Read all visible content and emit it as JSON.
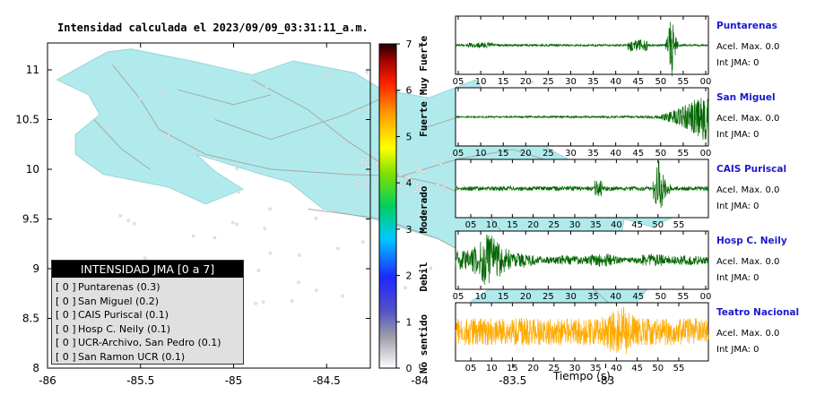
{
  "map": {
    "title": "Intensidad calculada el 2023/09/09_03:31:11_a.m.",
    "lon_ticks": [
      "-86",
      "-85.5",
      "-85",
      "-84.5",
      "-84",
      "-83.5",
      "-83"
    ],
    "lat_ticks": [
      "11",
      "10.5",
      "10",
      "9.5",
      "9",
      "8.5",
      "8"
    ],
    "land_color": "#b0eaec",
    "road_color": "#a8a8a8"
  },
  "colorbar": {
    "ticks": [
      "0",
      "1",
      "2",
      "3",
      "4",
      "5",
      "6",
      "7"
    ],
    "labels": [
      "No sentido",
      "Debil",
      "Moderado",
      "Fuerte",
      "Muy Fuerte"
    ]
  },
  "legend": {
    "title": "INTENSIDAD JMA [0 a 7]",
    "rows": [
      {
        "code": "[ 0 ]",
        "name": "Puntarenas (0.3)"
      },
      {
        "code": "[ 0 ]",
        "name": "San Miguel (0.2)"
      },
      {
        "code": "[ 0 ]",
        "name": "CAIS Puriscal (0.1)"
      },
      {
        "code": "[ 0 ]",
        "name": "Hosp C. Neily (0.1)"
      },
      {
        "code": "[ 0 ]",
        "name": "UCR-Archivo, San Pedro (0.1)"
      },
      {
        "code": "[ 0 ]",
        "name": "San Ramon UCR (0.1)"
      }
    ]
  },
  "stations": [
    {
      "name": "Puntarenas",
      "acel": "Acel. Max. 0.0",
      "int": "Int JMA: 0",
      "ticks": [
        "05",
        "10",
        "15",
        "20",
        "25",
        "30",
        "35",
        "40",
        "45",
        "50",
        "55",
        "00"
      ],
      "color": "#006600",
      "pattern": "late-burst"
    },
    {
      "name": "San Miguel",
      "acel": "Acel. Max. 0.0",
      "int": "Int JMA: 0",
      "ticks": [
        "05",
        "10",
        "15",
        "20",
        "25",
        "30",
        "35",
        "40",
        "45",
        "50",
        "55",
        "00"
      ],
      "color": "#006600",
      "pattern": "ramp"
    },
    {
      "name": "CAIS Puriscal",
      "acel": "Acel. Max. 0.0",
      "int": "Int JMA: 0",
      "ticks": [
        "05",
        "10",
        "15",
        "20",
        "25",
        "30",
        "35",
        "40",
        "45",
        "50",
        "55"
      ],
      "color": "#006600",
      "pattern": "mid-spike"
    },
    {
      "name": "Hosp C. Neily",
      "acel": "Acel. Max. 0.0",
      "int": "Int JMA: 0",
      "ticks": [
        "05",
        "10",
        "15",
        "20",
        "25",
        "30",
        "35",
        "40",
        "45",
        "50",
        "55",
        "00"
      ],
      "color": "#006600",
      "pattern": "early"
    },
    {
      "name": "Teatro Nacional",
      "acel": "Acel. Max. 0.0",
      "int": "Int JMA: 0",
      "ticks": [
        "05",
        "10",
        "15",
        "20",
        "25",
        "30",
        "35",
        "40",
        "45",
        "50",
        "55"
      ],
      "color": "#ffaa00",
      "pattern": "noise"
    }
  ],
  "xaxis_label": "Tiempo (s)"
}
